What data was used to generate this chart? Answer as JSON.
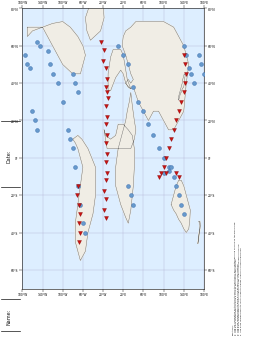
{
  "eq_color": "#6699cc",
  "eq_edge": "#3366aa",
  "vol_color": "#cc1111",
  "vol_edge": "#880000",
  "background_color": "#ffffff",
  "ocean_color": "#ddeeff",
  "land_color": "#f0ede5",
  "grid_color": "#aaaacc",
  "border_color": "#333333",
  "xlim": [
    -180,
    180
  ],
  "ylim": [
    -70,
    80
  ],
  "xticks": [
    -180,
    -140,
    -100,
    -60,
    -20,
    20,
    60,
    100,
    140,
    180
  ],
  "yticks": [
    -60,
    -40,
    -20,
    0,
    20,
    40,
    60,
    80
  ],
  "earthquakes_lonlat": [
    [
      -150,
      62
    ],
    [
      -145,
      60
    ],
    [
      -130,
      57
    ],
    [
      -125,
      50
    ],
    [
      -120,
      45
    ],
    [
      -110,
      40
    ],
    [
      -100,
      30
    ],
    [
      -90,
      15
    ],
    [
      -85,
      10
    ],
    [
      -80,
      5
    ],
    [
      -75,
      -5
    ],
    [
      -70,
      -15
    ],
    [
      -65,
      -25
    ],
    [
      -60,
      -35
    ],
    [
      -55,
      -40
    ],
    [
      170,
      55
    ],
    [
      175,
      50
    ],
    [
      180,
      45
    ],
    [
      -175,
      55
    ],
    [
      -170,
      50
    ],
    [
      -165,
      48
    ],
    [
      -160,
      25
    ],
    [
      -155,
      20
    ],
    [
      -150,
      15
    ],
    [
      140,
      60
    ],
    [
      145,
      55
    ],
    [
      150,
      48
    ],
    [
      155,
      45
    ],
    [
      160,
      40
    ],
    [
      10,
      60
    ],
    [
      20,
      55
    ],
    [
      30,
      50
    ],
    [
      40,
      38
    ],
    [
      50,
      30
    ],
    [
      60,
      25
    ],
    [
      70,
      18
    ],
    [
      80,
      12
    ],
    [
      90,
      5
    ],
    [
      100,
      0
    ],
    [
      110,
      -5
    ],
    [
      120,
      -10
    ],
    [
      125,
      -15
    ],
    [
      130,
      -20
    ],
    [
      135,
      -25
    ],
    [
      140,
      -30
    ],
    [
      30,
      -15
    ],
    [
      35,
      -20
    ],
    [
      40,
      -25
    ],
    [
      -80,
      45
    ],
    [
      -75,
      40
    ],
    [
      -70,
      35
    ],
    [
      100,
      -8
    ],
    [
      110,
      -7
    ],
    [
      115,
      -5
    ]
  ],
  "volcanoes_lonlat": [
    [
      -25,
      62
    ],
    [
      -18,
      58
    ],
    [
      -20,
      52
    ],
    [
      -15,
      48
    ],
    [
      -12,
      42
    ],
    [
      -15,
      38
    ],
    [
      -12,
      35
    ],
    [
      -10,
      32
    ],
    [
      -15,
      28
    ],
    [
      -12,
      22
    ],
    [
      -15,
      18
    ],
    [
      -12,
      12
    ],
    [
      -15,
      8
    ],
    [
      -12,
      2
    ],
    [
      -15,
      -2
    ],
    [
      -12,
      -8
    ],
    [
      -15,
      -12
    ],
    [
      -18,
      -18
    ],
    [
      -15,
      -22
    ],
    [
      -18,
      -28
    ],
    [
      -15,
      -32
    ],
    [
      -70,
      -15
    ],
    [
      -72,
      -20
    ],
    [
      -68,
      -25
    ],
    [
      -65,
      -30
    ],
    [
      -68,
      -35
    ],
    [
      -65,
      -40
    ],
    [
      -68,
      -45
    ],
    [
      140,
      55
    ],
    [
      143,
      50
    ],
    [
      145,
      45
    ],
    [
      143,
      40
    ],
    [
      140,
      35
    ],
    [
      135,
      30
    ],
    [
      130,
      25
    ],
    [
      125,
      20
    ],
    [
      120,
      15
    ],
    [
      115,
      10
    ],
    [
      110,
      5
    ],
    [
      105,
      0
    ],
    [
      100,
      -5
    ],
    [
      95,
      -8
    ],
    [
      90,
      -10
    ],
    [
      105,
      -8
    ],
    [
      125,
      -8
    ],
    [
      130,
      -10
    ]
  ],
  "directions": "Directions:\n1.  Use the information on the table to mark the location of each earthquake and volcano on the world map.\n2.  Use a blue colored pencil to draw a circle at each earthquake location.\n3.  Use a red colored pencil to draw a circle at each volcano location.\n4.  Use a blue colored pencil to lightly shade the areas in which earthquakes are found.\n5.  Use a red colored pencil to lightly shade the areas in which volcanoes are found.",
  "name_label": "Name:",
  "date_label": "Date:"
}
